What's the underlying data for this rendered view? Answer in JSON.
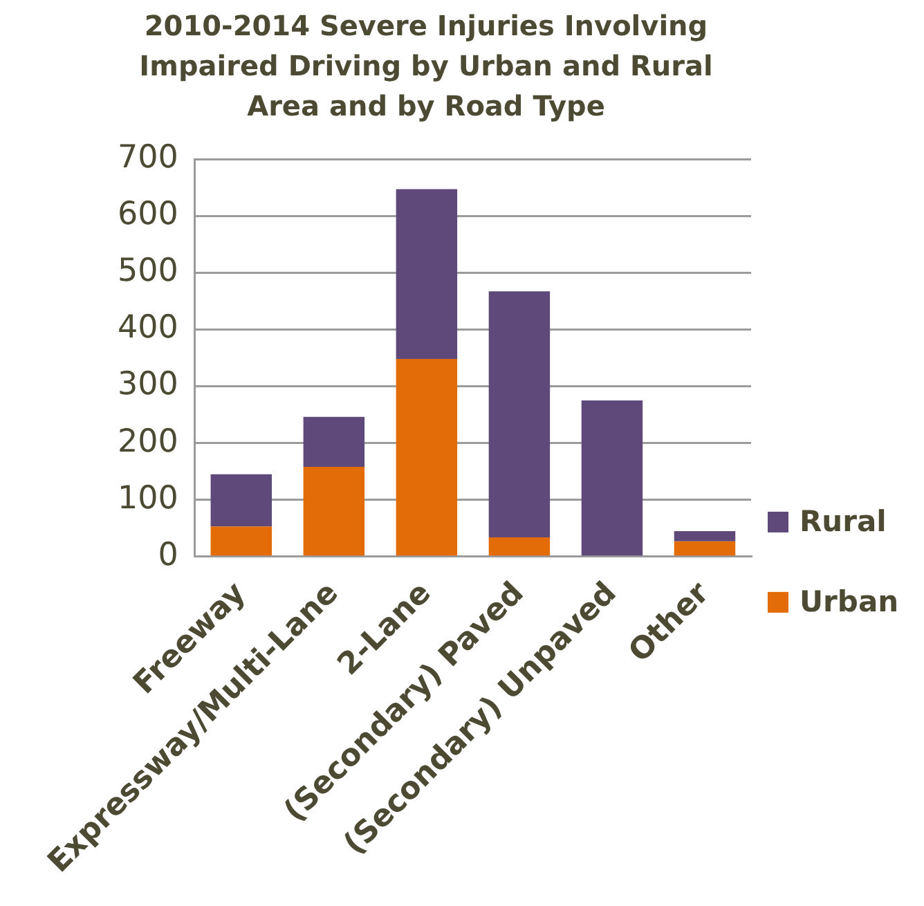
{
  "chart_data": {
    "type": "bar",
    "title": "2010-2014 Severe Injuries Involving Impaired Driving by Urban and Rural Area and by Road Type",
    "categories": [
      "Freeway",
      "Expressway/Multi-Lane",
      "2-Lane",
      "(Secondary) Paved",
      "(Secondary) Unpaved",
      "Other"
    ],
    "series": [
      {
        "name": "Urban",
        "color": "#e36c09",
        "values": [
          53,
          158,
          348,
          34,
          0,
          27
        ]
      },
      {
        "name": "Rural",
        "color": "#5f497a",
        "values": [
          92,
          88,
          299,
          433,
          275,
          18
        ]
      }
    ],
    "stacked": true,
    "ylim": [
      0,
      700
    ],
    "yticks": [
      0,
      100,
      200,
      300,
      400,
      500,
      600,
      700
    ],
    "grid": "y",
    "legend": "right"
  }
}
